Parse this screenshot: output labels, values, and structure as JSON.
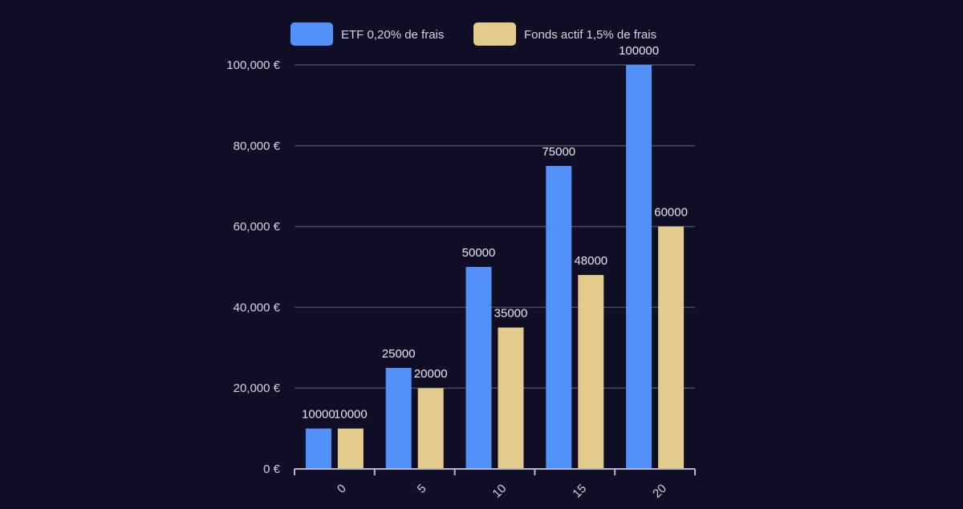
{
  "chart_data": {
    "type": "bar",
    "categories": [
      "0",
      "5",
      "10",
      "15",
      "20"
    ],
    "series": [
      {
        "name": "ETF 0,20% de frais",
        "values": [
          10000,
          25000,
          50000,
          75000,
          100000
        ],
        "color": "#5191f9"
      },
      {
        "name": "Fonds actif 1,5% de frais",
        "values": [
          10000,
          20000,
          35000,
          48000,
          60000
        ],
        "color": "#e2cb8b"
      }
    ],
    "yticks": [
      "0 €",
      "20,000 €",
      "40,000 €",
      "60,000 €",
      "80,000 €",
      "100,000 €"
    ],
    "ylim": [
      0,
      100000
    ],
    "grid": true,
    "legend": "top",
    "data_labels": true,
    "colors": {
      "background": "#100e26",
      "grid": "#4b4a5c",
      "text": "#d4d3e0",
      "axis": "#b8b7c8"
    }
  }
}
